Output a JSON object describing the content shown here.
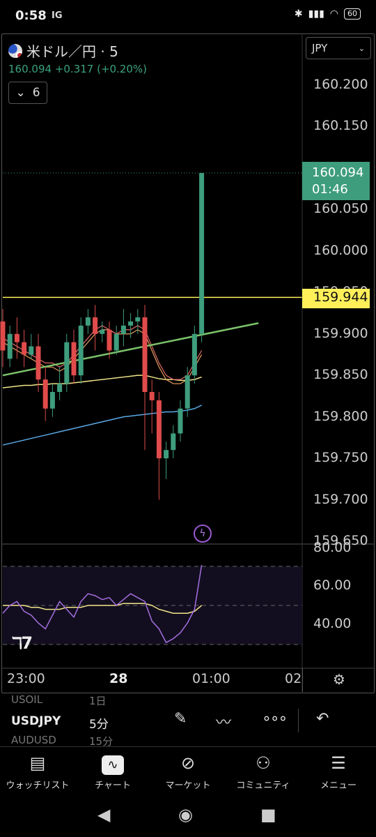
{
  "status": {
    "time": "0:58",
    "carrier": "IG",
    "battery": "60"
  },
  "header": {
    "symbol": "米ドル／円 · 5",
    "last_price": "160.094",
    "change": "+0.317 (+0.20%)",
    "indicator_toggle": "6",
    "currency": "JPY"
  },
  "price_axis": [
    "160.200",
    "160.150",
    "160.100",
    "160.050",
    "160.000",
    "159.950",
    "159.900",
    "159.850",
    "159.800",
    "159.750",
    "159.700",
    "159.650"
  ],
  "last_price_box": {
    "price": "160.094",
    "countdown": "01:46"
  },
  "hline_price": "159.944",
  "rsi_axis": [
    "80.00",
    "60.00",
    "40.00"
  ],
  "time_axis": [
    "23:00",
    "28",
    "01:00",
    "02"
  ],
  "toolbar": {
    "symbol": "USDJPY",
    "interval": "5分",
    "ghost_above_symbol": "USOIL",
    "ghost_above_interval": "1日",
    "ghost_below_symbol": "AUDUSD",
    "ghost_below_interval": "15分"
  },
  "nav": [
    {
      "label": "ウォッチリスト",
      "icon": "watchlist-icon"
    },
    {
      "label": "チャート",
      "icon": "chart-icon"
    },
    {
      "label": "マーケット",
      "icon": "compass-icon"
    },
    {
      "label": "コミュニティ",
      "icon": "community-icon"
    },
    {
      "label": "メニュー",
      "icon": "menu-icon"
    }
  ],
  "colors": {
    "up": "#3e9d7d",
    "down": "#e04b4b",
    "hline": "#fff05a",
    "trend": "#7cc36b",
    "rsi": "#a56ee0"
  },
  "chart_data": {
    "type": "candlestick",
    "title": "米ドル／円 · 5",
    "last": 160.094,
    "hline": 159.944,
    "candles": [
      {
        "o": 159.915,
        "h": 159.93,
        "c": 159.88,
        "l": 159.86
      },
      {
        "o": 159.87,
        "h": 159.91,
        "c": 159.9,
        "l": 159.86
      },
      {
        "o": 159.9,
        "h": 159.92,
        "c": 159.89,
        "l": 159.87
      },
      {
        "o": 159.89,
        "h": 159.905,
        "c": 159.875,
        "l": 159.86
      },
      {
        "o": 159.875,
        "h": 159.9,
        "c": 159.885,
        "l": 159.87
      },
      {
        "o": 159.885,
        "h": 159.9,
        "c": 159.845,
        "l": 159.83
      },
      {
        "o": 159.845,
        "h": 159.86,
        "c": 159.81,
        "l": 159.795
      },
      {
        "o": 159.81,
        "h": 159.84,
        "c": 159.83,
        "l": 159.8
      },
      {
        "o": 159.83,
        "h": 159.86,
        "c": 159.84,
        "l": 159.82
      },
      {
        "o": 159.84,
        "h": 159.9,
        "c": 159.89,
        "l": 159.83
      },
      {
        "o": 159.89,
        "h": 159.905,
        "c": 159.85,
        "l": 159.84
      },
      {
        "o": 159.85,
        "h": 159.92,
        "c": 159.91,
        "l": 159.84
      },
      {
        "o": 159.91,
        "h": 159.93,
        "c": 159.92,
        "l": 159.9
      },
      {
        "o": 159.92,
        "h": 159.935,
        "c": 159.9,
        "l": 159.88
      },
      {
        "o": 159.9,
        "h": 159.915,
        "c": 159.905,
        "l": 159.89
      },
      {
        "o": 159.905,
        "h": 159.915,
        "c": 159.88,
        "l": 159.87
      },
      {
        "o": 159.88,
        "h": 159.91,
        "c": 159.9,
        "l": 159.875
      },
      {
        "o": 159.9,
        "h": 159.93,
        "c": 159.91,
        "l": 159.885
      },
      {
        "o": 159.91,
        "h": 159.925,
        "c": 159.915,
        "l": 159.895
      },
      {
        "o": 159.915,
        "h": 159.93,
        "c": 159.92,
        "l": 159.9
      },
      {
        "o": 159.92,
        "h": 159.935,
        "c": 159.83,
        "l": 159.76
      },
      {
        "o": 159.83,
        "h": 159.845,
        "c": 159.82,
        "l": 159.78
      },
      {
        "o": 159.82,
        "h": 159.83,
        "c": 159.75,
        "l": 159.7
      },
      {
        "o": 159.75,
        "h": 159.77,
        "c": 159.76,
        "l": 159.725
      },
      {
        "o": 159.76,
        "h": 159.79,
        "c": 159.78,
        "l": 159.75
      },
      {
        "o": 159.78,
        "h": 159.82,
        "c": 159.81,
        "l": 159.77
      },
      {
        "o": 159.81,
        "h": 159.86,
        "c": 159.85,
        "l": 159.8
      },
      {
        "o": 159.85,
        "h": 159.91,
        "c": 159.9,
        "l": 159.84
      },
      {
        "o": 159.9,
        "h": 160.094,
        "c": 160.094,
        "l": 159.89
      }
    ],
    "trendline": [
      [
        0,
        159.85
      ],
      [
        36,
        159.913
      ]
    ],
    "ma_orange": [
      159.89,
      159.885,
      159.88,
      159.875,
      159.87,
      159.865,
      159.86,
      159.86,
      159.855,
      159.86,
      159.87,
      159.88,
      159.89,
      159.9,
      159.905,
      159.905,
      159.9,
      159.9,
      159.9,
      159.905,
      159.9,
      159.88,
      159.86,
      159.845,
      159.84,
      159.84,
      159.845,
      159.86,
      159.875
    ],
    "ma_red": [
      159.895,
      159.89,
      159.885,
      159.88,
      159.875,
      159.87,
      159.865,
      159.865,
      159.86,
      159.865,
      159.875,
      159.885,
      159.895,
      159.905,
      159.91,
      159.905,
      159.9,
      159.905,
      159.905,
      159.91,
      159.905,
      159.885,
      159.865,
      159.85,
      159.845,
      159.845,
      159.85,
      159.865,
      159.88
    ],
    "ma_yellow": [
      159.835,
      159.836,
      159.837,
      159.838,
      159.838,
      159.839,
      159.839,
      159.84,
      159.84,
      159.84,
      159.841,
      159.842,
      159.843,
      159.844,
      159.845,
      159.846,
      159.847,
      159.848,
      159.849,
      159.85,
      159.85,
      159.848,
      159.846,
      159.845,
      159.845,
      159.844,
      159.844,
      159.845,
      159.848
    ],
    "ma_blue": [
      159.766,
      159.768,
      159.77,
      159.772,
      159.774,
      159.776,
      159.778,
      159.78,
      159.782,
      159.784,
      159.786,
      159.788,
      159.79,
      159.792,
      159.794,
      159.796,
      159.798,
      159.8,
      159.801,
      159.802,
      159.803,
      159.804,
      159.805,
      159.806,
      159.806,
      159.807,
      159.808,
      159.81,
      159.814
    ],
    "ylim": [
      159.65,
      160.2
    ],
    "rsi": [
      46,
      50,
      52,
      47,
      45,
      41,
      38,
      45,
      52,
      48,
      44,
      52,
      56,
      55,
      53,
      54,
      50,
      53,
      56,
      54,
      52,
      42,
      38,
      31,
      33,
      36,
      41,
      48,
      72
    ],
    "rsi_signal": [
      50,
      50,
      50,
      50,
      49,
      49,
      48,
      48,
      48,
      49,
      49,
      49,
      50,
      50,
      50,
      50,
      50,
      51,
      51,
      51,
      51,
      50,
      48,
      47,
      46,
      46,
      46,
      47,
      50
    ],
    "rsi_lim": [
      30,
      80
    ],
    "rsi_bands": [
      70,
      50,
      30
    ]
  }
}
